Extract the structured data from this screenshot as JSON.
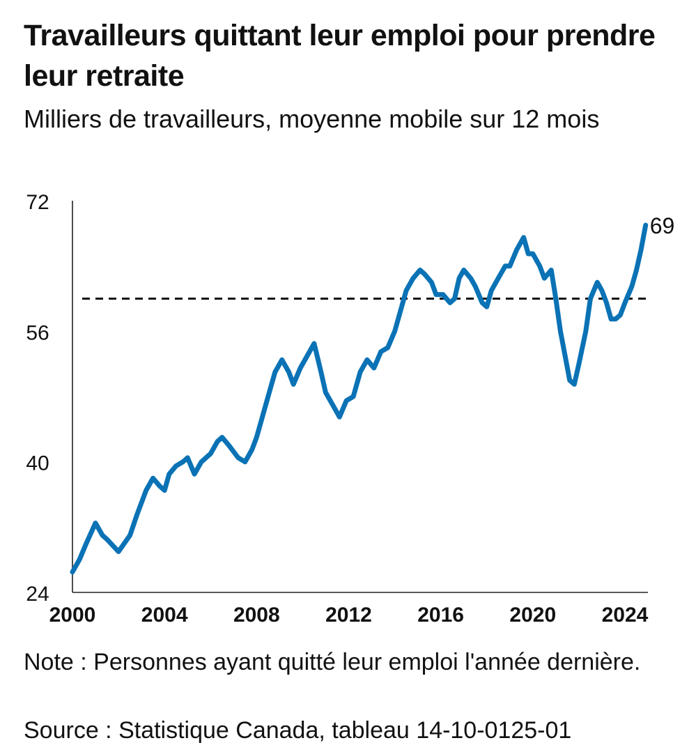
{
  "chart_data": {
    "type": "line",
    "title": "Travailleurs quittant leur emploi pour prendre leur retraite",
    "subtitle": "Milliers de travailleurs, moyenne mobile sur 12 mois",
    "xlabel": "",
    "ylabel": "",
    "xlim": [
      2000,
      2025
    ],
    "ylim": [
      24,
      72
    ],
    "x_ticks": [
      "2000",
      "2004",
      "2008",
      "2012",
      "2016",
      "2020",
      "2024"
    ],
    "y_ticks": [
      "24",
      "40",
      "56",
      "72"
    ],
    "grid": false,
    "legend": "none",
    "line_color": "#0a72b5",
    "reference_line": {
      "y": 60,
      "style": "dashed"
    },
    "end_label": "69",
    "series": [
      {
        "x": [
          2000.0,
          2000.3,
          2000.6,
          2001.0,
          2001.3,
          2001.5,
          2002.0,
          2002.5,
          2002.8,
          2003.2,
          2003.5,
          2003.8,
          2004.0,
          2004.2,
          2004.5,
          2004.8,
          2005.0,
          2005.3,
          2005.6,
          2006.0,
          2006.3,
          2006.5,
          2006.8,
          2007.2,
          2007.5,
          2007.8,
          2008.0,
          2008.3,
          2008.6,
          2008.8,
          2009.1,
          2009.4,
          2009.6,
          2009.9,
          2010.2,
          2010.5,
          2010.8,
          2011.0,
          2011.3,
          2011.6,
          2011.9,
          2012.2,
          2012.5,
          2012.8,
          2013.1,
          2013.4,
          2013.7,
          2014.0,
          2014.3,
          2014.5,
          2014.8,
          2015.1,
          2015.3,
          2015.6,
          2015.8,
          2016.1,
          2016.4,
          2016.6,
          2016.8,
          2017.0,
          2017.3,
          2017.5,
          2017.8,
          2018.0,
          2018.2,
          2018.5,
          2018.8,
          2019.0,
          2019.3,
          2019.6,
          2019.8,
          2020.0,
          2020.3,
          2020.5,
          2020.8,
          2021.0,
          2021.2,
          2021.4,
          2021.6,
          2021.8,
          2022.0,
          2022.3,
          2022.5,
          2022.8,
          2023.0,
          2023.2,
          2023.4,
          2023.6,
          2023.8,
          2024.0,
          2024.3,
          2024.5,
          2024.7,
          2024.9
        ],
        "values": [
          26.5,
          28.0,
          30.0,
          32.5,
          31.0,
          30.5,
          29.0,
          31.0,
          33.5,
          36.5,
          38.0,
          37.0,
          36.5,
          38.5,
          39.5,
          40.0,
          40.5,
          38.5,
          40.0,
          41.0,
          42.5,
          43.0,
          42.0,
          40.5,
          40.0,
          41.5,
          43.0,
          46.0,
          49.0,
          51.0,
          52.5,
          51.0,
          49.5,
          51.5,
          53.0,
          54.5,
          51.0,
          48.5,
          47.0,
          45.5,
          47.5,
          48.0,
          51.0,
          52.5,
          51.5,
          53.5,
          54.0,
          56.0,
          59.0,
          61.0,
          62.5,
          63.5,
          63.0,
          62.0,
          60.5,
          60.5,
          59.5,
          60.0,
          62.5,
          63.5,
          62.5,
          61.5,
          59.5,
          59.0,
          61.0,
          62.5,
          64.0,
          64.0,
          66.0,
          67.5,
          65.5,
          65.5,
          64.0,
          62.5,
          63.5,
          60.0,
          56.0,
          53.0,
          50.0,
          49.5,
          52.0,
          56.0,
          60.0,
          62.0,
          61.0,
          59.5,
          57.5,
          57.5,
          58.0,
          59.5,
          61.5,
          63.5,
          66.0,
          69.0
        ]
      }
    ]
  },
  "footer": {
    "note": "Note : Personnes ayant quitté leur emploi l'année dernière.",
    "source": "Source : Statistique Canada, tableau 14-10-0125-01"
  }
}
